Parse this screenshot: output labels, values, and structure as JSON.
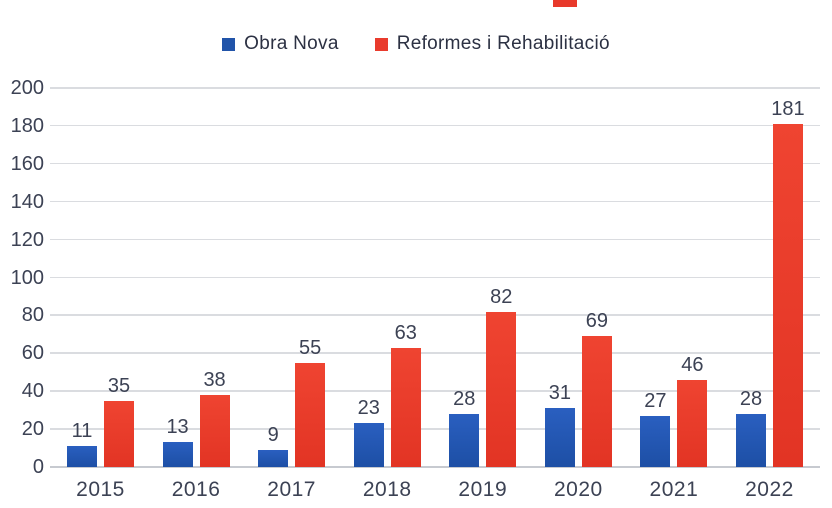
{
  "chart_data": {
    "type": "bar",
    "title": "",
    "categories": [
      "2015",
      "2016",
      "2017",
      "2018",
      "2019",
      "2020",
      "2021",
      "2022"
    ],
    "series": [
      {
        "name": "Obra Nova",
        "color": "#2154a9",
        "values": [
          11,
          13,
          9,
          23,
          28,
          31,
          27,
          28
        ]
      },
      {
        "name": "Reformes i Rehabilitació",
        "color": "#e93b2d",
        "values": [
          35,
          38,
          55,
          63,
          82,
          69,
          46,
          181
        ]
      }
    ],
    "ylim": [
      0,
      200
    ],
    "ytick_step": 20,
    "yticks": [
      0,
      20,
      40,
      60,
      80,
      100,
      120,
      140,
      160,
      180,
      200
    ],
    "grid": "horizontal",
    "legend_position": "top-center",
    "value_labels": "above-bars"
  },
  "colors": {
    "background": "#ffffff",
    "grid": "#dadce0",
    "axis_line": "#c7cad0",
    "text": "#3c4254",
    "title_fragment_red": "#e8392b"
  }
}
